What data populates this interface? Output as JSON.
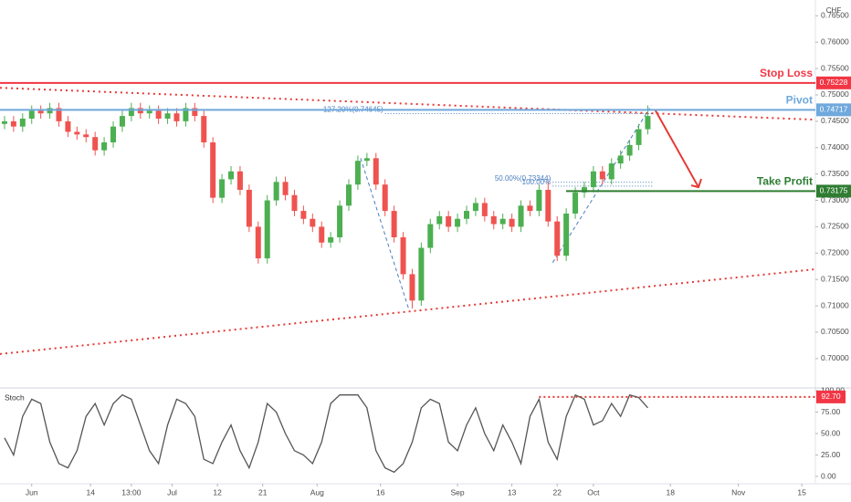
{
  "chart_data": {
    "type": "candlestick",
    "currency": "CHF",
    "x": [
      1,
      3,
      5,
      7,
      9,
      11,
      13,
      15,
      17,
      19,
      21,
      23,
      25,
      27,
      29,
      31,
      33,
      35,
      37,
      39,
      41,
      43,
      45,
      47,
      49,
      51,
      53,
      55,
      57,
      59,
      61,
      63,
      65,
      67,
      69,
      71,
      73,
      75,
      77,
      79,
      81,
      83,
      85,
      87,
      89,
      91,
      93,
      95,
      97,
      99,
      101,
      103,
      105,
      107,
      109,
      111,
      113,
      115,
      117,
      119,
      121,
      123,
      125,
      127,
      129,
      131,
      133,
      135,
      137,
      139,
      141,
      143
    ],
    "open": [
      0.7445,
      0.745,
      0.744,
      0.7455,
      0.747,
      0.7465,
      0.7475,
      0.745,
      0.743,
      0.7425,
      0.742,
      0.7395,
      0.741,
      0.744,
      0.746,
      0.7475,
      0.7465,
      0.747,
      0.7455,
      0.7465,
      0.745,
      0.7475,
      0.746,
      0.741,
      0.7305,
      0.734,
      0.7355,
      0.732,
      0.725,
      0.719,
      0.73,
      0.7335,
      0.731,
      0.728,
      0.7265,
      0.725,
      0.722,
      0.723,
      0.729,
      0.733,
      0.7375,
      0.738,
      0.733,
      0.728,
      0.723,
      0.716,
      0.711,
      0.721,
      0.7255,
      0.727,
      0.725,
      0.7265,
      0.728,
      0.7295,
      0.727,
      0.7255,
      0.7265,
      0.725,
      0.729,
      0.728,
      0.732,
      0.726,
      0.7195,
      0.7275,
      0.7315,
      0.7325,
      0.7355,
      0.734,
      0.737,
      0.7385,
      0.7405,
      0.7435
    ],
    "high": [
      0.746,
      0.746,
      0.7465,
      0.748,
      0.748,
      0.7485,
      0.7485,
      0.746,
      0.744,
      0.7435,
      0.743,
      0.742,
      0.745,
      0.747,
      0.7485,
      0.7485,
      0.748,
      0.748,
      0.7475,
      0.7475,
      0.7485,
      0.7485,
      0.747,
      0.742,
      0.735,
      0.7365,
      0.7365,
      0.733,
      0.726,
      0.731,
      0.7345,
      0.7345,
      0.732,
      0.729,
      0.7275,
      0.726,
      0.724,
      0.73,
      0.734,
      0.7385,
      0.739,
      0.739,
      0.734,
      0.729,
      0.724,
      0.717,
      0.722,
      0.7265,
      0.728,
      0.728,
      0.7275,
      0.729,
      0.7305,
      0.7305,
      0.728,
      0.7275,
      0.7275,
      0.73,
      0.73,
      0.733,
      0.7335,
      0.727,
      0.7285,
      0.7325,
      0.7335,
      0.7365,
      0.7365,
      0.738,
      0.7395,
      0.7415,
      0.7445,
      0.748
    ],
    "low": [
      0.7435,
      0.743,
      0.743,
      0.7445,
      0.7455,
      0.7455,
      0.744,
      0.742,
      0.7415,
      0.741,
      0.7385,
      0.7385,
      0.74,
      0.743,
      0.745,
      0.7455,
      0.7455,
      0.7445,
      0.7445,
      0.744,
      0.744,
      0.745,
      0.74,
      0.7295,
      0.7295,
      0.733,
      0.731,
      0.724,
      0.718,
      0.718,
      0.729,
      0.73,
      0.727,
      0.7255,
      0.724,
      0.721,
      0.721,
      0.722,
      0.728,
      0.732,
      0.7365,
      0.732,
      0.727,
      0.722,
      0.715,
      0.7095,
      0.71,
      0.72,
      0.7245,
      0.724,
      0.724,
      0.7255,
      0.727,
      0.726,
      0.7245,
      0.7245,
      0.724,
      0.724,
      0.727,
      0.727,
      0.725,
      0.7185,
      0.7185,
      0.7265,
      0.7305,
      0.7315,
      0.733,
      0.733,
      0.736,
      0.7375,
      0.7395,
      0.7425
    ],
    "close": [
      0.745,
      0.744,
      0.7455,
      0.747,
      0.7465,
      0.7475,
      0.745,
      0.743,
      0.7425,
      0.742,
      0.7395,
      0.741,
      0.744,
      0.746,
      0.7475,
      0.7465,
      0.747,
      0.7455,
      0.7465,
      0.745,
      0.7475,
      0.746,
      0.741,
      0.7305,
      0.734,
      0.7355,
      0.732,
      0.725,
      0.719,
      0.73,
      0.7335,
      0.731,
      0.728,
      0.7265,
      0.725,
      0.722,
      0.723,
      0.729,
      0.733,
      0.7375,
      0.738,
      0.733,
      0.728,
      0.723,
      0.716,
      0.711,
      0.721,
      0.7255,
      0.727,
      0.725,
      0.7265,
      0.728,
      0.7295,
      0.727,
      0.7255,
      0.7265,
      0.725,
      0.729,
      0.728,
      0.732,
      0.726,
      0.7195,
      0.7275,
      0.7315,
      0.7325,
      0.7355,
      0.734,
      0.737,
      0.7385,
      0.7405,
      0.7435,
      0.746
    ],
    "up_color": "#4caf50",
    "down_color": "#ef5350",
    "xlim": [
      0,
      180
    ],
    "xticks": [
      {
        "value": 7,
        "label": "Jun"
      },
      {
        "value": 20,
        "label": "14"
      },
      {
        "value": 29,
        "label": "13:00"
      },
      {
        "value": 38,
        "label": "Jul"
      },
      {
        "value": 48,
        "label": "12"
      },
      {
        "value": 58,
        "label": "21"
      },
      {
        "value": 70,
        "label": "Aug"
      },
      {
        "value": 84,
        "label": "16"
      },
      {
        "value": 101,
        "label": "Sep"
      },
      {
        "value": 113,
        "label": "13"
      },
      {
        "value": 123,
        "label": "22"
      },
      {
        "value": 131,
        "label": "Oct"
      },
      {
        "value": 148,
        "label": "18"
      },
      {
        "value": 163,
        "label": "Nov"
      },
      {
        "value": 177,
        "label": "15"
      }
    ],
    "ylim": [
      0.6953,
      0.768
    ],
    "yticks": [
      {
        "value": 0.7,
        "label": "0.70000"
      },
      {
        "value": 0.705,
        "label": "0.70500"
      },
      {
        "value": 0.71,
        "label": "0.71000"
      },
      {
        "value": 0.715,
        "label": "0.71500"
      },
      {
        "value": 0.72,
        "label": "0.72000"
      },
      {
        "value": 0.725,
        "label": "0.72500"
      },
      {
        "value": 0.73,
        "label": "0.73000"
      },
      {
        "value": 0.735,
        "label": "0.73500"
      },
      {
        "value": 0.74,
        "label": "0.74000"
      },
      {
        "value": 0.745,
        "label": "0.74500"
      },
      {
        "value": 0.75,
        "label": "0.75000"
      },
      {
        "value": 0.755,
        "label": "0.75500"
      },
      {
        "value": 0.76,
        "label": "0.76000"
      },
      {
        "value": 0.765,
        "label": "0.76500"
      }
    ],
    "levels": [
      {
        "name": "Stop Loss",
        "value": 0.75228,
        "label": "0.75228",
        "color": "#f23645"
      },
      {
        "name": "Pivot",
        "value": 0.74717,
        "label": "0.74717",
        "color": "#6fa8dc"
      },
      {
        "name": "Take Profit",
        "value": 0.73175,
        "label": "0.73175",
        "color": "#2e7d32"
      }
    ],
    "fibs": [
      {
        "label": "127.20%(0.74645)",
        "value": 0.74645,
        "x": [
          85,
          144
        ]
      },
      {
        "label": "50.00%(0.73344)",
        "value": 0.73344,
        "x": [
          122,
          144
        ]
      },
      {
        "label": "100.00%",
        "value": 0.7327,
        "x": [
          122,
          144
        ]
      }
    ],
    "trendlines": [
      {
        "x": [
          0,
          180
        ],
        "y": [
          0.75135,
          0.7453
        ]
      },
      {
        "x": [
          0,
          180
        ],
        "y": [
          0.70086,
          0.71694
        ]
      }
    ],
    "swings": [
      {
        "x": [
          79.6,
          90.3
        ],
        "y": [
          0.738,
          0.7092
        ]
      },
      {
        "x": [
          122,
          143.8
        ],
        "y": [
          0.7182,
          0.748
        ]
      }
    ],
    "arrow": {
      "x": [
        144.6,
        154.2
      ],
      "y": [
        0.7472,
        0.7325
      ]
    },
    "stoch": {
      "title": "Stoch",
      "values": [
        45,
        25,
        70,
        90,
        85,
        40,
        15,
        10,
        30,
        70,
        85,
        60,
        85,
        95,
        90,
        60,
        30,
        15,
        60,
        90,
        85,
        70,
        20,
        15,
        40,
        60,
        30,
        10,
        40,
        85,
        75,
        50,
        30,
        25,
        15,
        40,
        85,
        95,
        95,
        95,
        80,
        30,
        10,
        5,
        15,
        40,
        80,
        90,
        85,
        40,
        30,
        60,
        80,
        50,
        30,
        60,
        40,
        15,
        70,
        90,
        40,
        20,
        70,
        95,
        90,
        60,
        65,
        85,
        70,
        95,
        92,
        80
      ],
      "color": "#555555",
      "ylim": [
        -8.5,
        103.2
      ],
      "yticks": [
        {
          "value": 0,
          "label": "0.00"
        },
        {
          "value": 25,
          "label": "25.00"
        },
        {
          "value": 50,
          "label": "50.00"
        },
        {
          "value": 75,
          "label": "75.00"
        },
        {
          "value": 100,
          "label": "100.00"
        }
      ],
      "level": {
        "value": 92.7,
        "label": "92.70",
        "start_x": 119
      }
    }
  }
}
